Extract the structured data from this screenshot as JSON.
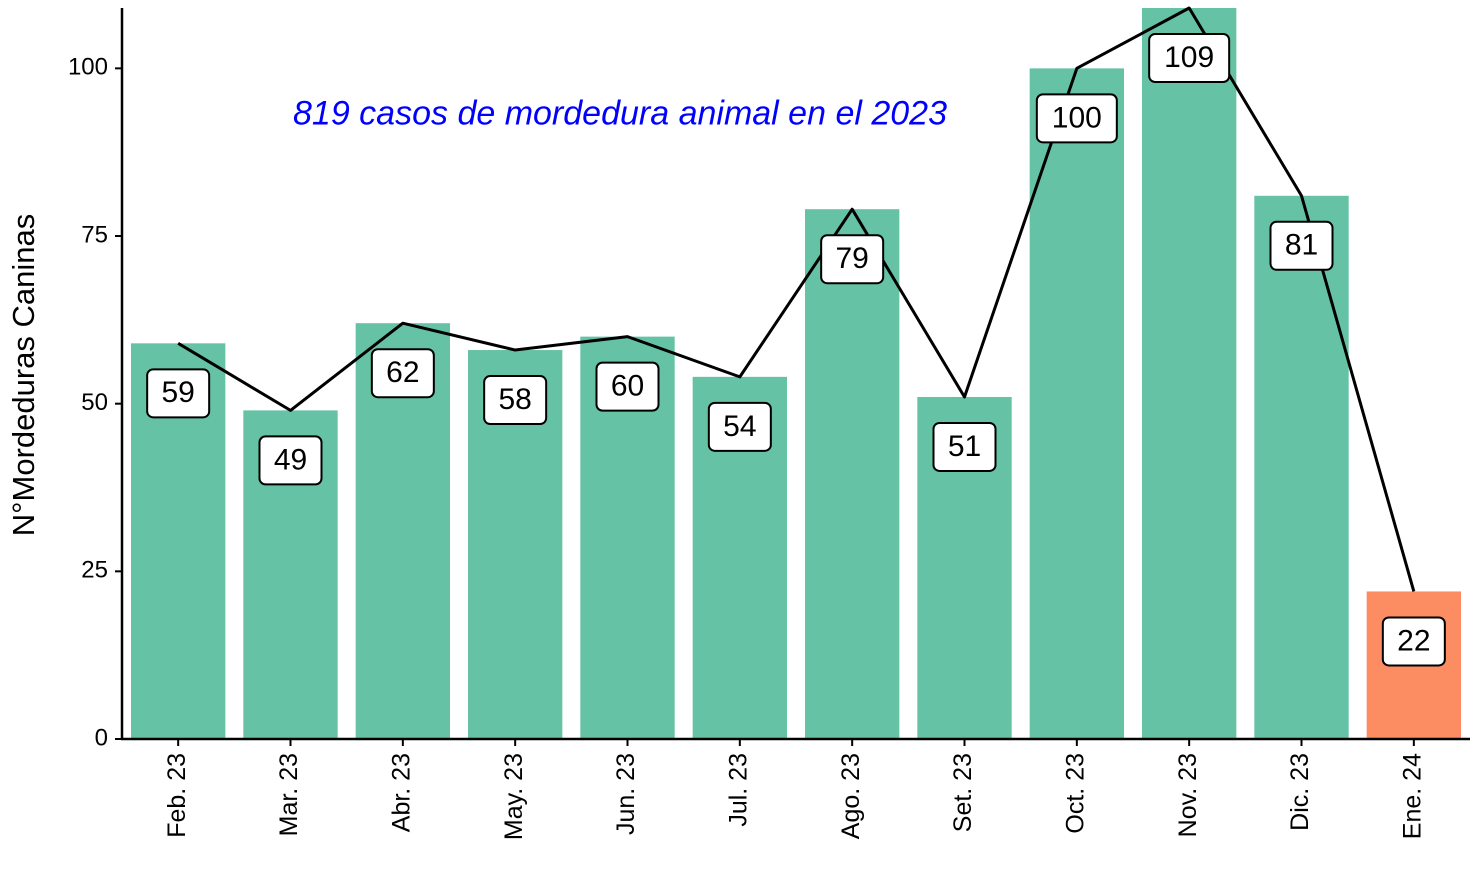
{
  "chart_data": {
    "type": "bar",
    "y_label": "N°Mordeduras Caninas",
    "annotation": "819 casos de mordedura animal en el 2023",
    "categories": [
      "Feb. 23",
      "Mar. 23",
      "Abr. 23",
      "May. 23",
      "Jun. 23",
      "Jul. 23",
      "Ago. 23",
      "Set. 23",
      "Oct. 23",
      "Nov. 23",
      "Dic. 23",
      "Ene. 24"
    ],
    "values": [
      59,
      49,
      62,
      58,
      60,
      54,
      79,
      51,
      100,
      109,
      81,
      22
    ],
    "colors": [
      "#66c2a5",
      "#66c2a5",
      "#66c2a5",
      "#66c2a5",
      "#66c2a5",
      "#66c2a5",
      "#66c2a5",
      "#66c2a5",
      "#66c2a5",
      "#66c2a5",
      "#66c2a5",
      "#fc8d62"
    ],
    "line_color": "#000000",
    "annotation_color": "#0000ff",
    "ylim": [
      0,
      109
    ],
    "yticks": [
      0,
      25,
      50,
      75,
      100
    ],
    "grid": false
  }
}
